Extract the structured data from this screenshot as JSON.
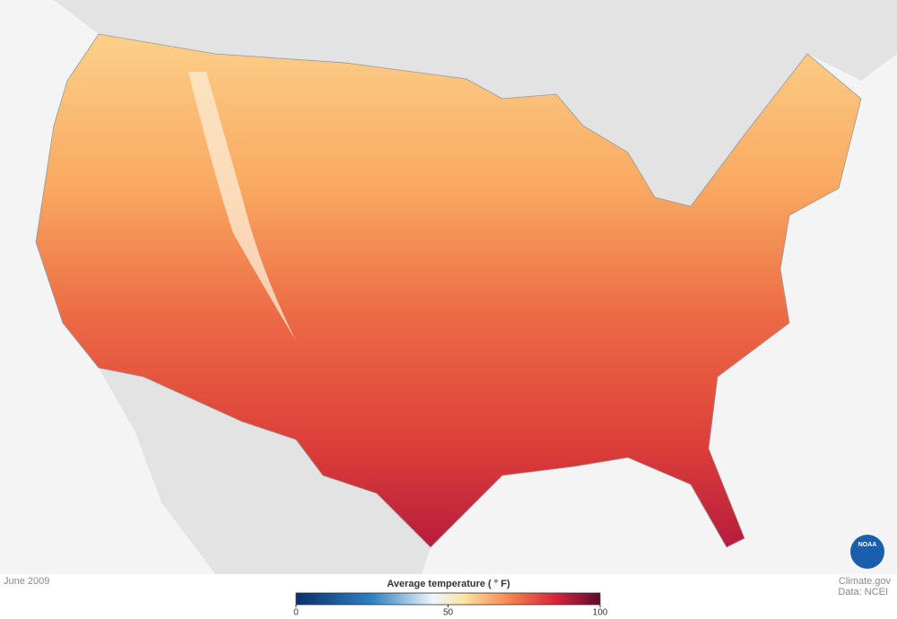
{
  "header": {
    "date": "June 2009"
  },
  "legend": {
    "title": "Average temperature ( ° F)",
    "range": [
      0,
      100
    ],
    "ticks": [
      0,
      50,
      100
    ]
  },
  "credits": {
    "site": "Climate.gov",
    "source": "Data: NCEI",
    "logo": "NOAA"
  }
}
